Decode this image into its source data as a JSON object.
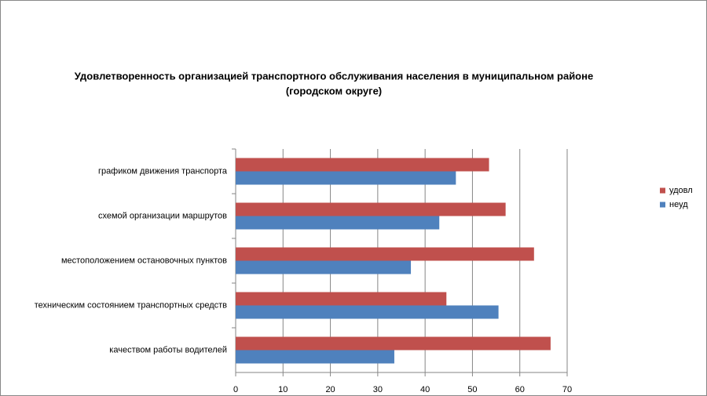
{
  "chart_data": {
    "type": "barh",
    "title": [
      "Удовлетворенность организацией транспортного обслуживания населения в муниципальном районе",
      "(городском округе)"
    ],
    "categories": [
      "графиком движения транспорта",
      "схемой организации маршрутов",
      "местоположением остановочных пунктов",
      "техническим состоянием транспортных средств",
      "качеством работы водителей"
    ],
    "series": [
      {
        "name": "удовл",
        "color": "#c0504d",
        "values": [
          53.5,
          57,
          63,
          44.5,
          66.5
        ]
      },
      {
        "name": "неуд",
        "color": "#4f81bd",
        "values": [
          46.5,
          43,
          37,
          55.5,
          33.5
        ]
      }
    ],
    "xlim": [
      0,
      70
    ],
    "xticks": [
      0,
      10,
      20,
      30,
      40,
      50,
      60,
      70
    ],
    "grid": true,
    "legend": "right"
  }
}
